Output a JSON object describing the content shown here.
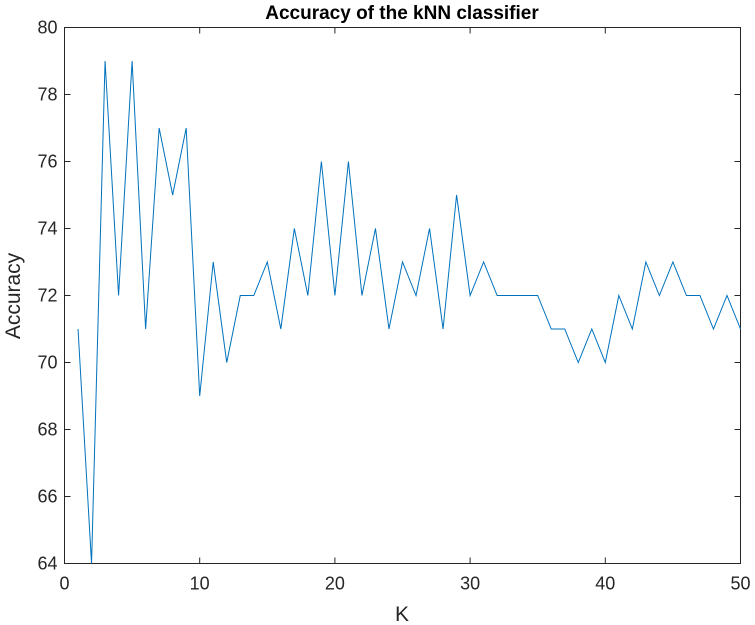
{
  "chart_data": {
    "type": "line",
    "title": "Accuracy of the kNN classifier",
    "xlabel": "K",
    "ylabel": "Accuracy",
    "xlim": [
      0,
      50
    ],
    "ylim": [
      64,
      80
    ],
    "xticks": [
      0,
      10,
      20,
      30,
      40,
      50
    ],
    "yticks": [
      64,
      66,
      68,
      70,
      72,
      74,
      76,
      78,
      80
    ],
    "grid": false,
    "color": "#0072bd",
    "series": [
      {
        "x": [
          1,
          2,
          3,
          4,
          5,
          6,
          7,
          8,
          9,
          10,
          11,
          12,
          13,
          14,
          15,
          16,
          17,
          18,
          19,
          20,
          21,
          22,
          23,
          24,
          25,
          26,
          27,
          28,
          29,
          30,
          31,
          32,
          33,
          34,
          35,
          36,
          37,
          38,
          39,
          40,
          41,
          42,
          43,
          44,
          45,
          46,
          47,
          48,
          49,
          50
        ],
        "values": [
          71,
          64,
          79,
          72,
          79,
          71,
          77,
          75,
          77,
          69,
          73,
          70,
          72,
          72,
          73,
          71,
          74,
          72,
          76,
          72,
          76,
          72,
          74,
          71,
          73,
          72,
          74,
          71,
          75,
          72,
          73,
          72,
          72,
          72,
          72,
          71,
          71,
          70,
          71,
          70,
          72,
          71,
          73,
          72,
          73,
          72,
          72,
          71,
          72,
          71
        ]
      }
    ]
  }
}
